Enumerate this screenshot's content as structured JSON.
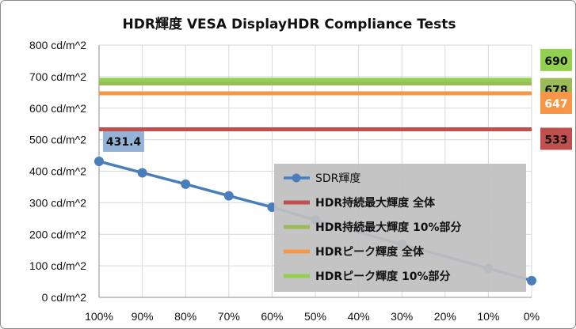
{
  "chart_data": {
    "type": "line",
    "title": "HDR輝度 VESA DisplayHDR Compliance Tests",
    "categories": [
      "100%",
      "90%",
      "80%",
      "70%",
      "60%",
      "50%",
      "40%",
      "30%",
      "20%",
      "10%",
      "0%"
    ],
    "ylim": [
      0,
      800
    ],
    "yticks": [
      "0 cd/m^2",
      "100 cd/m^2",
      "200 cd/m^2",
      "300 cd/m^2",
      "400 cd/m^2",
      "500 cd/m^2",
      "600 cd/m^2",
      "700 cd/m^2",
      "800 cd/m^2"
    ],
    "grid": true,
    "legend_position": "bottom-right",
    "series": [
      {
        "name": "SDR輝度",
        "kind": "line-markers",
        "color": "#4a7ebb",
        "values": [
          431.4,
          395,
          359,
          322,
          286,
          245,
          null,
          168,
          null,
          92,
          53
        ],
        "data_labels": [
          {
            "index": 0,
            "text": "431.4",
            "bg": "#95b3d7"
          }
        ]
      },
      {
        "name": "HDR持続最大輝度 全体",
        "kind": "hline",
        "color": "#c0504d",
        "value": 533,
        "label": "533",
        "label_bg": "#c0504d",
        "label_color": "#111111"
      },
      {
        "name": "HDR持続最大輝度 10%部分",
        "kind": "hline",
        "color": "#9bbb59",
        "value": 678,
        "label": "678",
        "label_bg": "#9bbb59",
        "label_color": "#111111"
      },
      {
        "name": "HDRピーク輝度 全体",
        "kind": "hline",
        "color": "#f79646",
        "value": 647,
        "label": "647",
        "label_bg": "#f79646",
        "label_color": "#ffffff"
      },
      {
        "name": "HDRピーク輝度 10%部分",
        "kind": "hline",
        "color": "#92d050",
        "value": 690,
        "label": "690",
        "label_bg": "#92d050",
        "label_color": "#111111"
      }
    ]
  }
}
